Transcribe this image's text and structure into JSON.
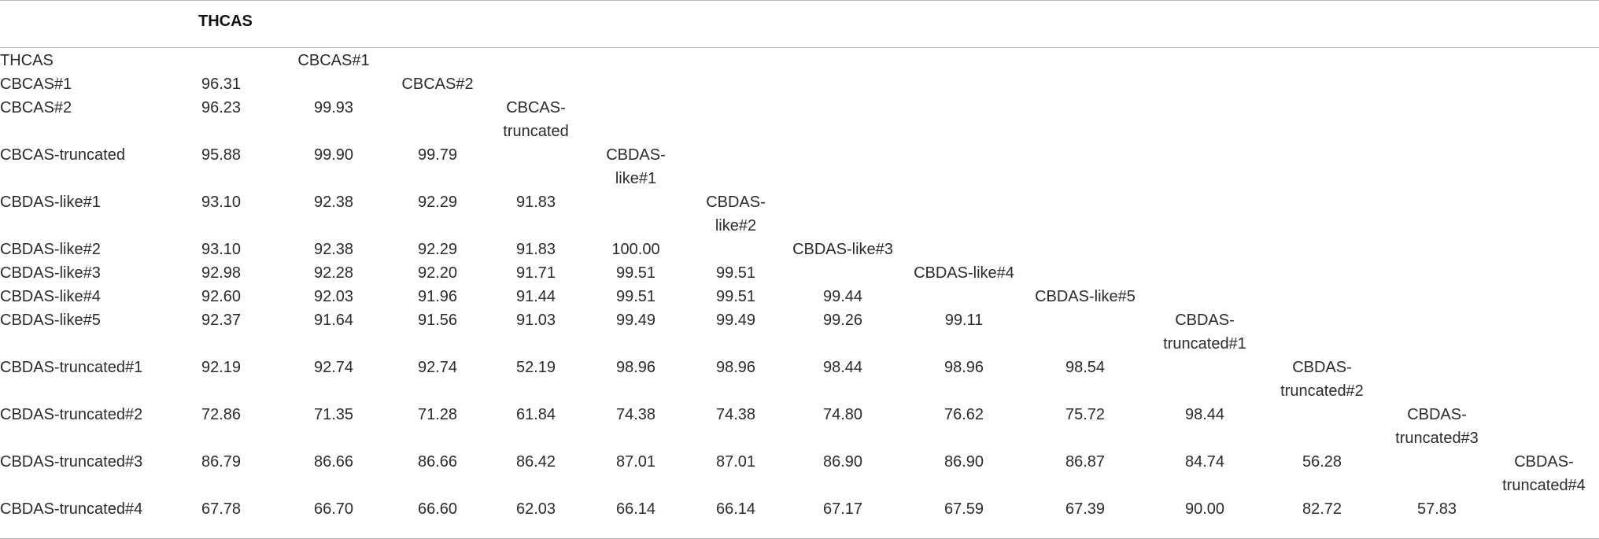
{
  "table": {
    "corner_header": "THCAS",
    "rows": [
      {
        "label": "THCAS",
        "cells": [],
        "diag": "CBCAS#1"
      },
      {
        "label": "CBCAS#1",
        "cells": [
          "96.31"
        ],
        "diag": "CBCAS#2"
      },
      {
        "label": "CBCAS#2",
        "cells": [
          "96.23",
          "99.93"
        ],
        "diag": "CBCAS-\ntruncated"
      },
      {
        "label": "CBCAS-truncated",
        "cells": [
          "95.88",
          "99.90",
          "99.79"
        ],
        "diag": "CBDAS-\nlike#1"
      },
      {
        "label": "CBDAS-like#1",
        "cells": [
          "93.10",
          "92.38",
          "92.29",
          "91.83"
        ],
        "diag": "CBDAS-\nlike#2"
      },
      {
        "label": "CBDAS-like#2",
        "cells": [
          "93.10",
          "92.38",
          "92.29",
          "91.83",
          "100.00"
        ],
        "diag": "CBDAS-like#3"
      },
      {
        "label": "CBDAS-like#3",
        "cells": [
          "92.98",
          "92.28",
          "92.20",
          "91.71",
          "99.51",
          "99.51"
        ],
        "diag": "CBDAS-like#4"
      },
      {
        "label": "CBDAS-like#4",
        "cells": [
          "92.60",
          "92.03",
          "91.96",
          "91.44",
          "99.51",
          "99.51",
          "99.44"
        ],
        "diag": "CBDAS-like#5"
      },
      {
        "label": "CBDAS-like#5",
        "cells": [
          "92.37",
          "91.64",
          "91.56",
          "91.03",
          "99.49",
          "99.49",
          "99.26",
          "99.11"
        ],
        "diag": "CBDAS-\ntruncated#1"
      },
      {
        "label": "CBDAS-truncated#1",
        "cells": [
          "92.19",
          "92.74",
          "92.74",
          "52.19",
          "98.96",
          "98.96",
          "98.44",
          "98.96",
          "98.54"
        ],
        "diag": "CBDAS-\ntruncated#2"
      },
      {
        "label": "CBDAS-truncated#2",
        "cells": [
          "72.86",
          "71.35",
          "71.28",
          "61.84",
          "74.38",
          "74.38",
          "74.80",
          "76.62",
          "75.72",
          "98.44"
        ],
        "diag": "CBDAS-\ntruncated#3"
      },
      {
        "label": "CBDAS-truncated#3",
        "cells": [
          "86.79",
          "86.66",
          "86.66",
          "86.42",
          "87.01",
          "87.01",
          "86.90",
          "86.90",
          "86.87",
          "84.74",
          "56.28"
        ],
        "diag": "CBDAS-\ntruncated#4"
      },
      {
        "label": "CBDAS-truncated#4",
        "cells": [
          "67.78",
          "66.70",
          "66.60",
          "62.03",
          "66.14",
          "66.14",
          "67.17",
          "67.59",
          "67.39",
          "90.00",
          "82.72",
          "57.83"
        ],
        "diag": ""
      }
    ]
  }
}
